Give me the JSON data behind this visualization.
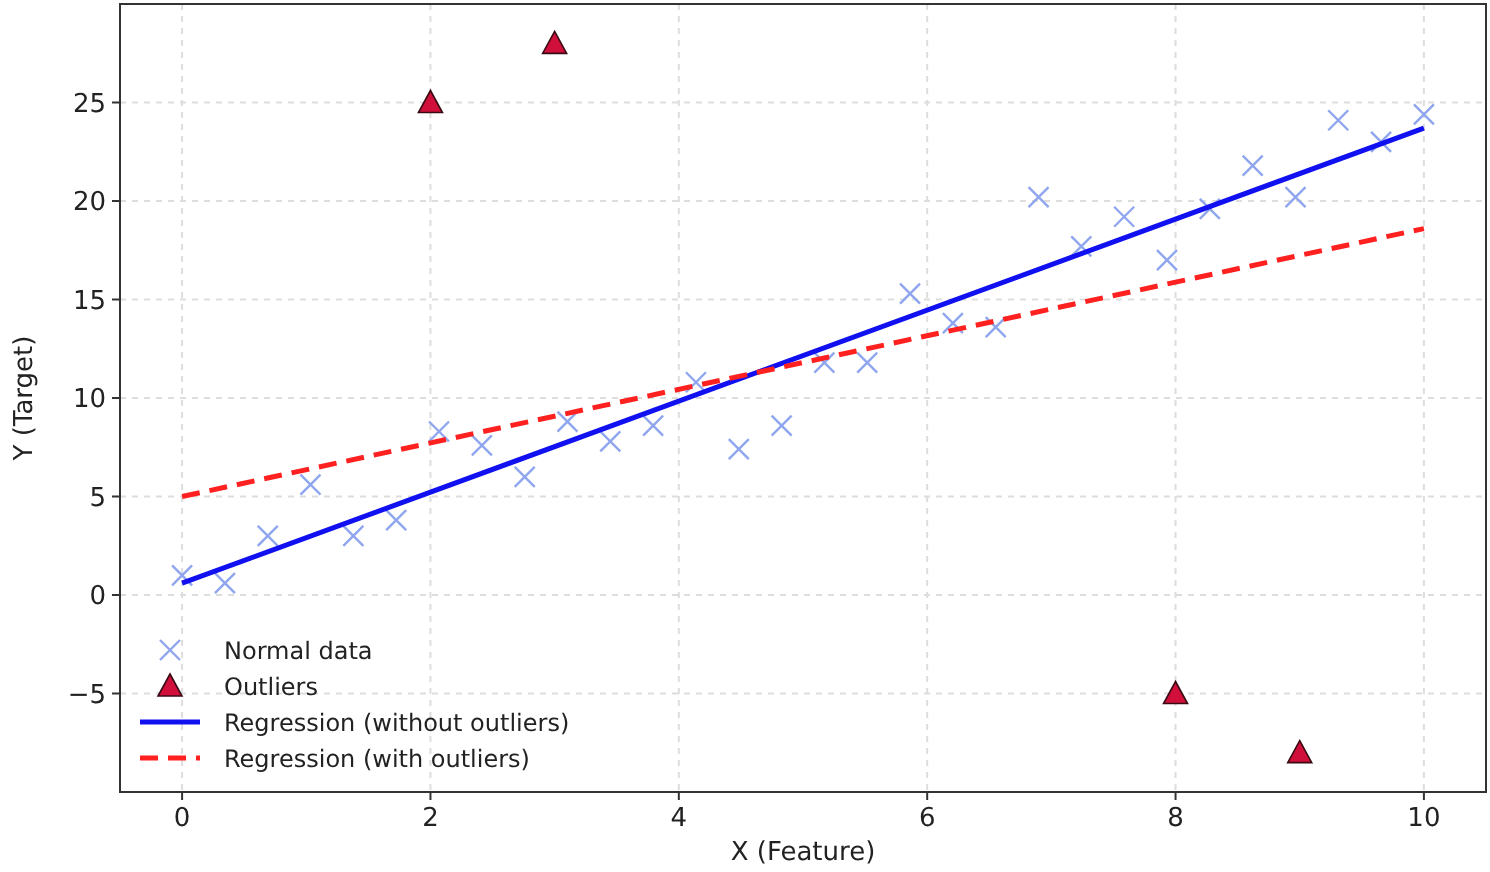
{
  "chart_data": {
    "type": "scatter",
    "xlabel": "X (Feature)",
    "ylabel": "Y (Target)",
    "xlim": [
      -0.5,
      10.5
    ],
    "ylim": [
      -10,
      30
    ],
    "xticks": [
      0,
      2,
      4,
      6,
      8,
      10
    ],
    "yticks": [
      {
        "value": -5,
        "label": "−5"
      },
      0,
      5,
      10,
      15,
      20,
      25
    ],
    "grid": true,
    "legend": "bottom left",
    "series": [
      {
        "name": "Normal data",
        "marker": "cross",
        "color": "#8fa6ee",
        "x": [
          0,
          0.345,
          0.69,
          1.034,
          1.379,
          1.724,
          2.069,
          2.414,
          2.759,
          3.103,
          3.448,
          3.793,
          4.138,
          4.483,
          4.828,
          5.172,
          5.517,
          5.862,
          6.207,
          6.552,
          6.897,
          7.241,
          7.586,
          7.931,
          8.276,
          8.621,
          8.966,
          9.31,
          9.655,
          10
        ],
        "values": [
          1.0,
          0.6,
          3.0,
          5.6,
          3.0,
          3.8,
          8.3,
          7.6,
          6.0,
          8.8,
          7.8,
          8.6,
          10.8,
          7.4,
          8.6,
          11.8,
          11.8,
          15.3,
          13.8,
          13.6,
          20.2,
          17.7,
          19.2,
          17.0,
          19.6,
          21.8,
          20.2,
          24.1,
          23.0,
          24.4
        ]
      },
      {
        "name": "Outliers",
        "marker": "triangle",
        "color": "#d0103a",
        "x": [
          2,
          3,
          8,
          9
        ],
        "values": [
          25,
          28,
          -5,
          -8
        ]
      },
      {
        "name": "Regression (without outliers)",
        "type": "line",
        "marker": "none",
        "line_style": "solid",
        "color": "#1010f0",
        "x": [
          0,
          10
        ],
        "values": [
          0.6,
          23.7
        ]
      },
      {
        "name": "Regression (with outliers)",
        "type": "line",
        "marker": "none",
        "line_style": "dashed",
        "color": "#ff2020",
        "x": [
          0,
          10
        ],
        "values": [
          5.0,
          18.6
        ]
      }
    ]
  }
}
